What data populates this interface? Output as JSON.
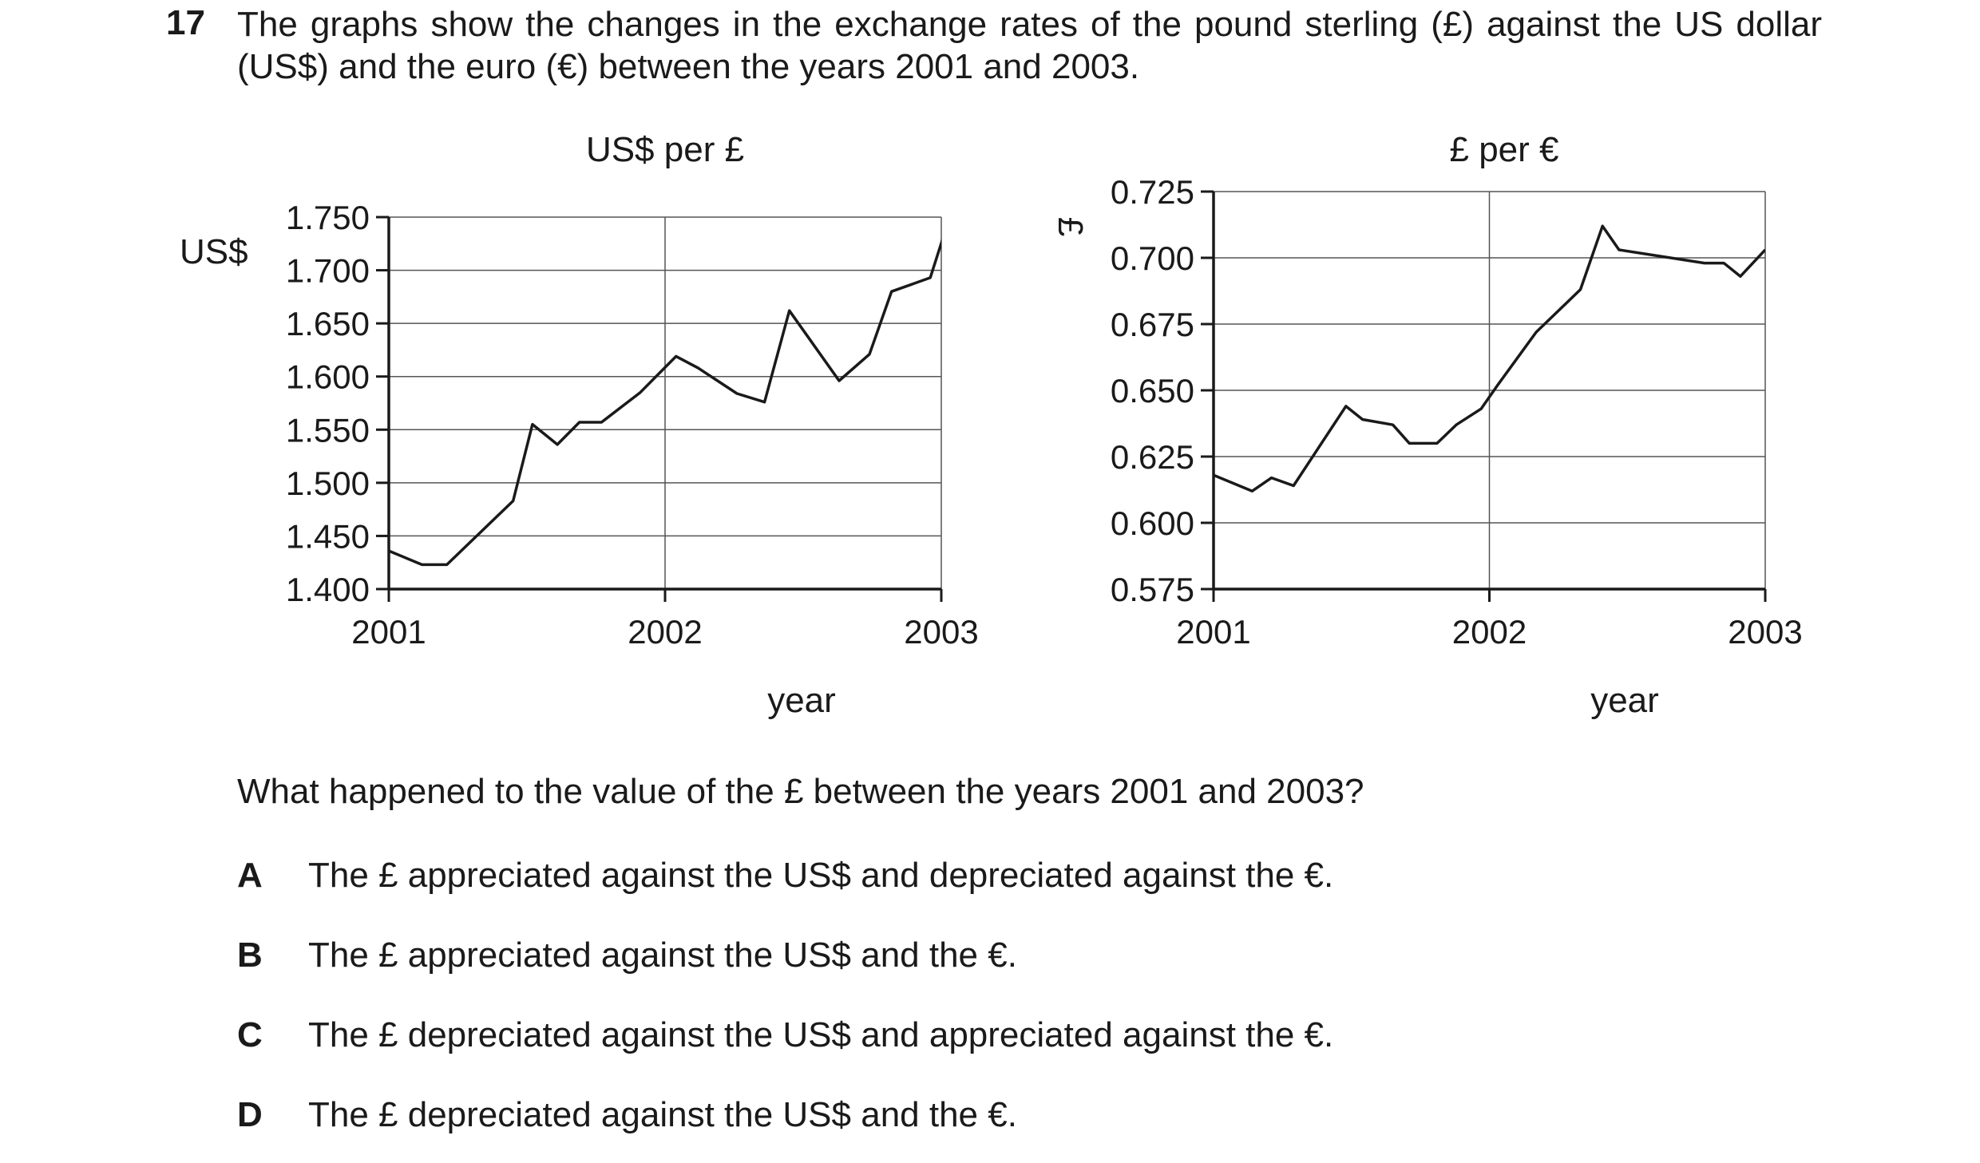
{
  "question": {
    "number": "17",
    "text": "The graphs show the changes in the exchange rates of the pound sterling (£) against the US dollar (US$) and the euro (€) between the years 2001 and 2003.",
    "prompt": "What happened to the value of the £ between the years 2001 and 2003?"
  },
  "options": [
    {
      "letter": "A",
      "text": "The £ appreciated against the US$ and depreciated against the €."
    },
    {
      "letter": "B",
      "text": "The £ appreciated against the US$ and the €."
    },
    {
      "letter": "C",
      "text": "The £ depreciated against the US$ and appreciated against the €."
    },
    {
      "letter": "D",
      "text": "The £ depreciated against the US$ and the €."
    }
  ],
  "colors": {
    "line": "#1a1a1a",
    "grid": "#555555",
    "text": "#1a1a1a"
  },
  "chart_data": [
    {
      "type": "line",
      "title": "US$ per £",
      "ylabel": "US$",
      "xlabel": "year",
      "xlim": [
        2001,
        2003
      ],
      "ylim": [
        1.4,
        1.75
      ],
      "xticks": [
        2001,
        2002,
        2003
      ],
      "xtick_labels": [
        "2001",
        "2002",
        "2003"
      ],
      "yticks": [
        1.4,
        1.45,
        1.5,
        1.55,
        1.6,
        1.65,
        1.7,
        1.75
      ],
      "ytick_labels": [
        "1.400",
        "1.450",
        "1.500",
        "1.550",
        "1.600",
        "1.650",
        "1.700",
        "1.750"
      ],
      "grid": true,
      "series": [
        {
          "x": [
            2001.0,
            2001.12,
            2001.21,
            2001.45,
            2001.52,
            2001.61,
            2001.69,
            2001.77,
            2001.91,
            2002.04,
            2002.12,
            2002.26,
            2002.36,
            2002.45,
            2002.63,
            2002.74,
            2002.82,
            2002.96,
            2003.03
          ],
          "y": [
            1.436,
            1.423,
            1.423,
            1.483,
            1.555,
            1.536,
            1.557,
            1.557,
            1.585,
            1.619,
            1.608,
            1.584,
            1.576,
            1.662,
            1.596,
            1.621,
            1.68,
            1.693,
            1.75
          ]
        }
      ]
    },
    {
      "type": "line",
      "title": "£ per €",
      "ylabel": "£",
      "xlabel": "year",
      "xlim": [
        2001,
        2003
      ],
      "ylim": [
        0.575,
        0.725
      ],
      "xticks": [
        2001,
        2002,
        2003
      ],
      "xtick_labels": [
        "2001",
        "2002",
        "2003"
      ],
      "yticks": [
        0.575,
        0.6,
        0.625,
        0.65,
        0.675,
        0.7,
        0.725
      ],
      "ytick_labels": [
        "0.575",
        "0.600",
        "0.625",
        "0.650",
        "0.675",
        "0.700",
        "0.725"
      ],
      "grid": true,
      "series": [
        {
          "x": [
            2001.0,
            2001.14,
            2001.21,
            2001.29,
            2001.48,
            2001.54,
            2001.65,
            2001.71,
            2001.81,
            2001.88,
            2001.97,
            2002.03,
            2002.17,
            2002.33,
            2002.41,
            2002.47,
            2002.78,
            2002.85,
            2002.91,
            2003.0
          ],
          "y": [
            0.618,
            0.612,
            0.617,
            0.614,
            0.644,
            0.639,
            0.637,
            0.63,
            0.63,
            0.637,
            0.643,
            0.652,
            0.672,
            0.688,
            0.712,
            0.703,
            0.698,
            0.698,
            0.693,
            0.703
          ]
        }
      ]
    }
  ]
}
